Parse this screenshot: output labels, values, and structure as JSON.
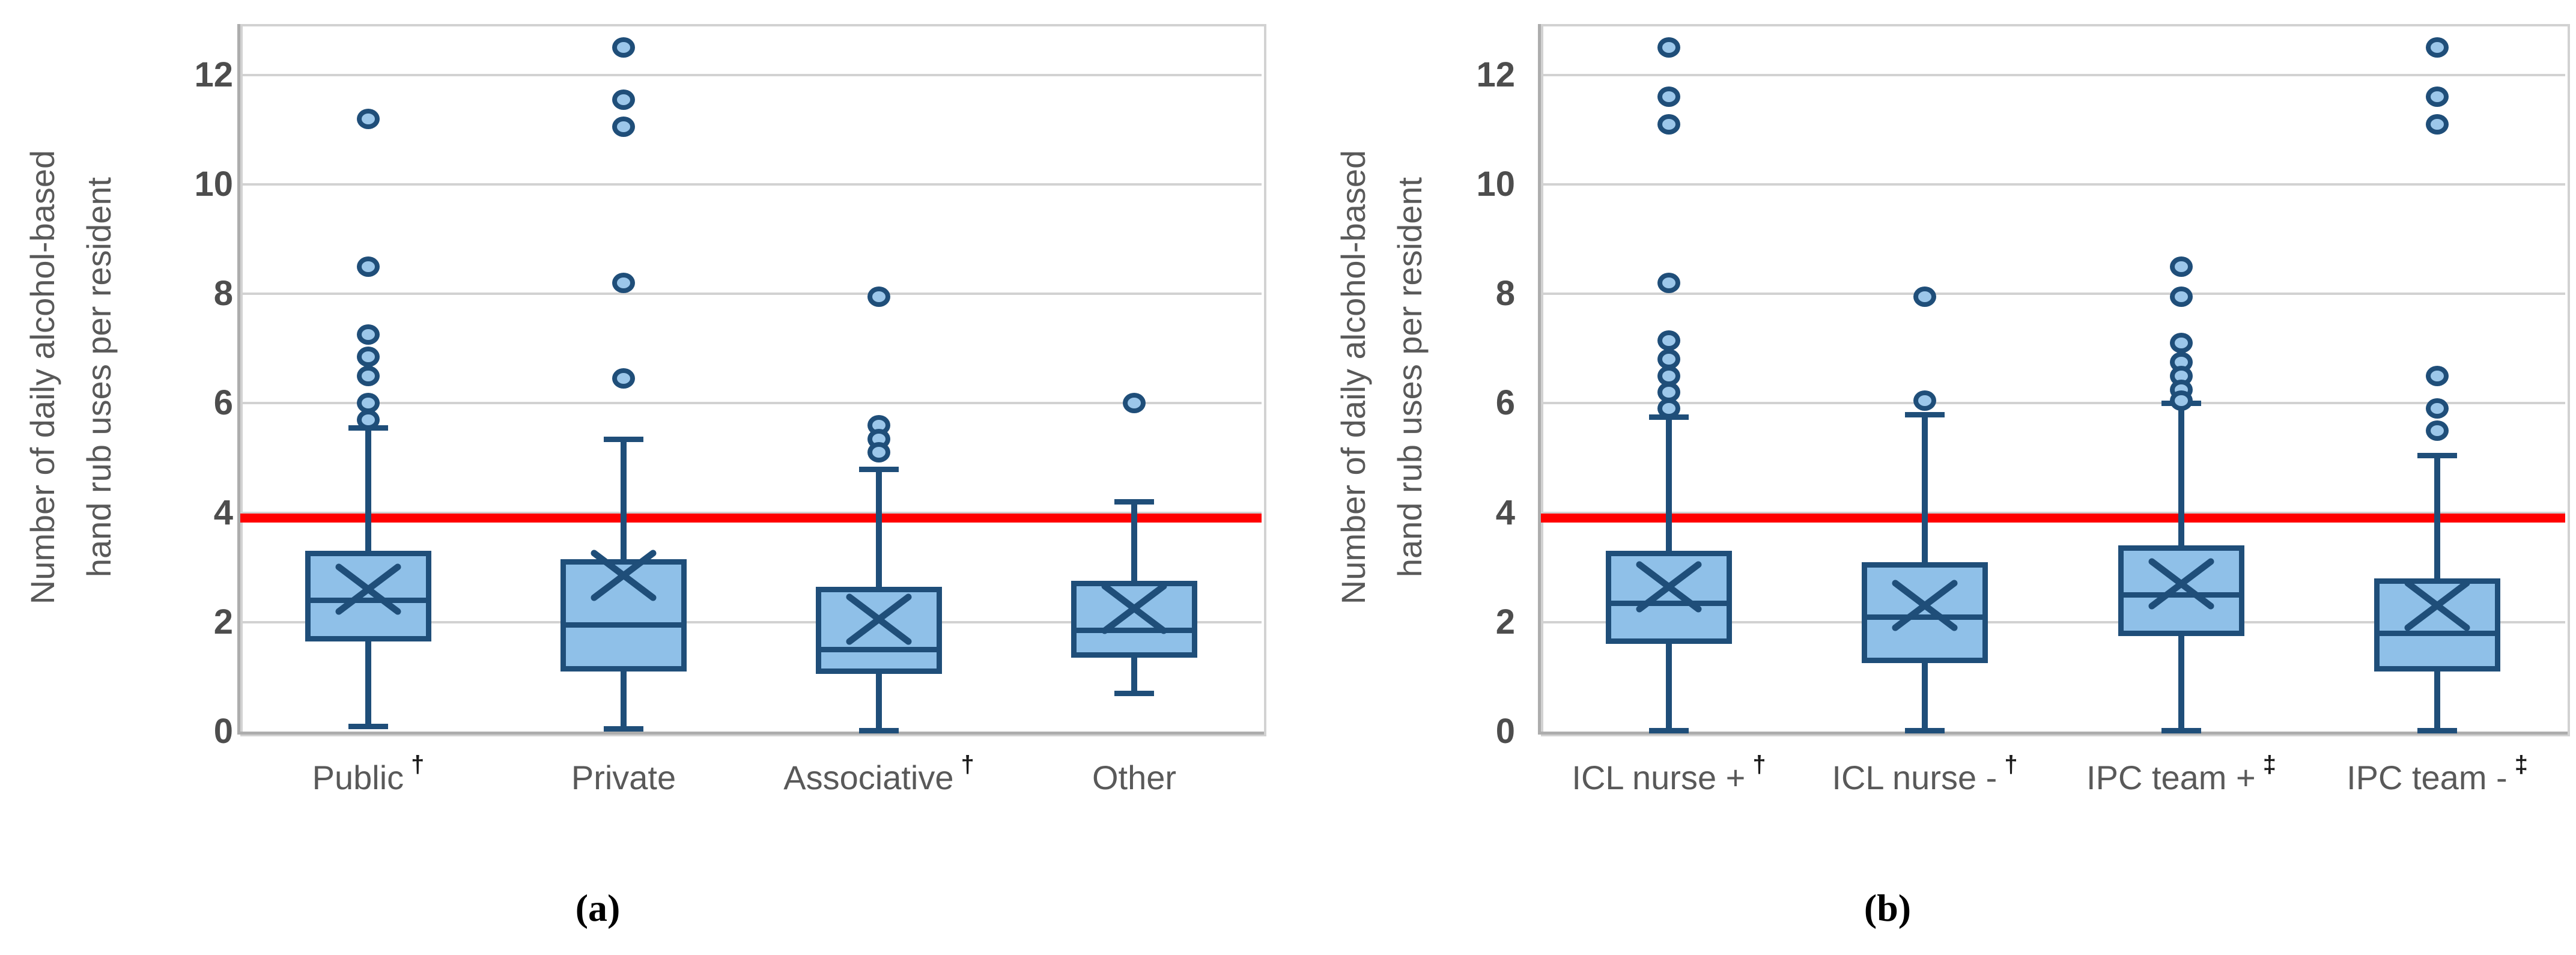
{
  "figure": {
    "background": "#FFFFFF",
    "description": "Two side-by-side box plots of daily alcohol-based hand rub uses per resident"
  },
  "colors": {
    "box_fill": "#8FC0E8",
    "box_stroke": "#1F4E79",
    "whisker": "#1F4E79",
    "mean_marker": "#1F4E79",
    "outlier_fill": "#9CC7EA",
    "outlier_stroke": "#1F4E79",
    "reference_line": "#FF0000",
    "gridline": "#D2D2D2",
    "axis_line": "#ADADAD",
    "tick_text": "#4D4D4D",
    "label_text": "#595959",
    "dagger_text": "#1A1A1A",
    "caption_text": "#000000"
  },
  "chart_data": [
    {
      "type": "box",
      "panel": "a",
      "caption": "(a)",
      "ylabel_lines": [
        "Number of daily alcohol-based",
        "hand rub uses per resident"
      ],
      "yticks": [
        0,
        2,
        4,
        6,
        8,
        10,
        12
      ],
      "ylim": [
        0,
        12.93
      ],
      "grid": true,
      "legend": "none",
      "reference_line_y": 4,
      "boxes": [
        {
          "label": "Public",
          "sup": "†",
          "whisker_low": 0.1,
          "q1": 1.65,
          "median": 2.4,
          "q3": 3.3,
          "whisker_high": 5.55,
          "mean": 2.6,
          "outliers": [
            11.2,
            8.5,
            7.25,
            6.85,
            6.5,
            6.0,
            5.7
          ]
        },
        {
          "label": "Private",
          "sup": "",
          "whisker_low": 0.05,
          "q1": 1.1,
          "median": 1.95,
          "q3": 3.15,
          "whisker_high": 5.35,
          "mean": 2.85,
          "outliers": [
            12.5,
            11.55,
            11.05,
            8.2,
            6.45
          ]
        },
        {
          "label": "Associative",
          "sup": "†",
          "whisker_low": 0.02,
          "q1": 1.05,
          "median": 1.5,
          "q3": 2.65,
          "whisker_high": 4.8,
          "mean": 2.05,
          "outliers": [
            7.95,
            5.6,
            5.35,
            5.1
          ]
        },
        {
          "label": "Other",
          "sup": "",
          "whisker_low": 0.7,
          "q1": 1.35,
          "median": 1.85,
          "q3": 2.75,
          "whisker_high": 4.2,
          "mean": 2.25,
          "outliers": [
            6.0
          ]
        }
      ]
    },
    {
      "type": "box",
      "panel": "b",
      "caption": "(b)",
      "ylabel_lines": [
        "Number of daily alcohol-based",
        "hand rub uses per resident"
      ],
      "yticks": [
        0,
        2,
        4,
        6,
        8,
        10,
        12
      ],
      "ylim": [
        0,
        12.93
      ],
      "grid": true,
      "legend": "none",
      "reference_line_y": 4,
      "boxes": [
        {
          "label": "ICL nurse +",
          "sup": "†",
          "whisker_low": 0.02,
          "q1": 1.6,
          "median": 2.35,
          "q3": 3.3,
          "whisker_high": 5.75,
          "mean": 2.65,
          "outliers": [
            12.5,
            11.6,
            11.1,
            8.2,
            7.15,
            6.8,
            6.5,
            6.2,
            5.9
          ]
        },
        {
          "label": "ICL nurse -",
          "sup": "†",
          "whisker_low": 0.02,
          "q1": 1.25,
          "median": 2.1,
          "q3": 3.1,
          "whisker_high": 5.8,
          "mean": 2.3,
          "outliers": [
            7.95,
            6.05
          ]
        },
        {
          "label": "IPC team +",
          "sup": "‡",
          "whisker_low": 0.02,
          "q1": 1.75,
          "median": 2.5,
          "q3": 3.4,
          "whisker_high": 6.0,
          "mean": 2.7,
          "outliers": [
            8.5,
            7.95,
            7.1,
            6.75,
            6.5,
            6.25,
            6.05
          ]
        },
        {
          "label": "IPC team -",
          "sup": "‡",
          "whisker_low": 0.02,
          "q1": 1.1,
          "median": 1.8,
          "q3": 2.8,
          "whisker_high": 5.05,
          "mean": 2.3,
          "outliers": [
            12.5,
            11.6,
            11.1,
            6.5,
            5.9,
            5.5
          ]
        }
      ]
    }
  ]
}
